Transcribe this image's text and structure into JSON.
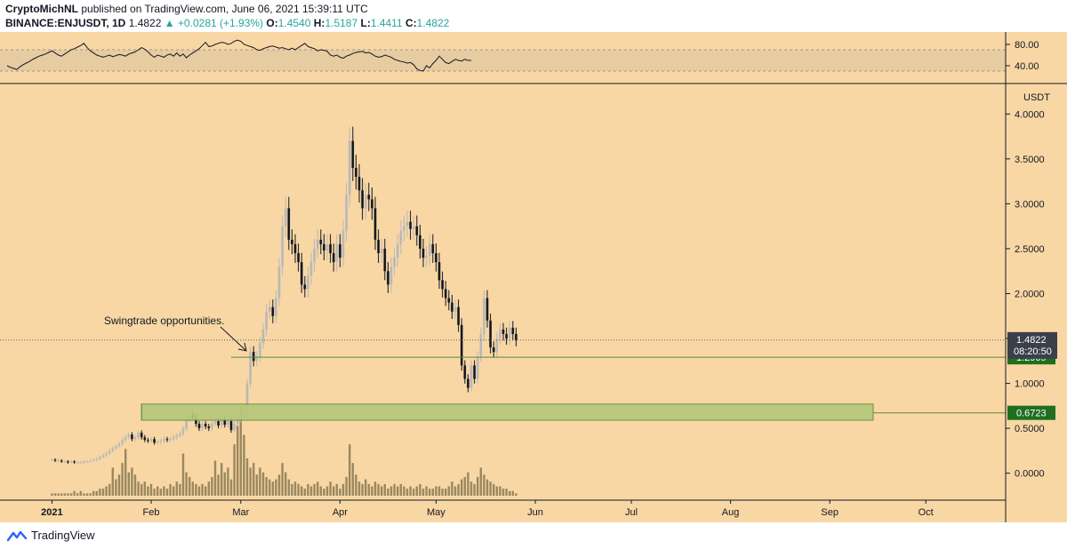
{
  "header": {
    "author": "CryptoMichNL",
    "published": "published on TradingView.com, June 06, 2021 15:39:11 UTC",
    "symbol": "BINANCE:ENJUSDT, 1D",
    "last": "1.4822",
    "change": "▲ +0.0281 (+1.93%)",
    "o_label": "O:",
    "o": "1.4540",
    "h_label": "H:",
    "h": "1.5187",
    "l_label": "L:",
    "l": "1.4411",
    "c_label": "C:",
    "c": "1.4822"
  },
  "footer": {
    "brand": "TradingView",
    "logo_icon": "tradingview-logo-icon"
  },
  "colors": {
    "background": "#f8d7a4",
    "up_candle": "#b8b8b8",
    "down_candle": "#131722",
    "volume": "#8a7a55",
    "support_line": "#5a8a3a",
    "zone_fill": "#b6c77a",
    "last_price_box": "#3a3f4a",
    "support_box": "#1f6f1f",
    "axis_text": "#131722"
  },
  "chart_data": {
    "type": "candlestick",
    "currency_label": "USDT",
    "y_ticks": [
      "4.0000",
      "3.5000",
      "3.0000",
      "2.5000",
      "2.0000",
      "1.5000",
      "1.0000",
      "0.5000",
      "0.0000"
    ],
    "ylim": [
      -0.3,
      4.3
    ],
    "x_ticks": [
      "2021",
      "Feb",
      "Mar",
      "Apr",
      "May",
      "Jun",
      "Jul",
      "Aug",
      "Sep",
      "Oct"
    ],
    "last_price": {
      "label": "1.4822",
      "countdown": "08:20:50",
      "value": 1.4822
    },
    "levels": [
      {
        "label": "1.2909",
        "value": 1.2909,
        "type": "line"
      },
      {
        "label": "0.6723",
        "value": 0.6723,
        "type": "zone",
        "top": 0.77,
        "bottom": 0.59
      }
    ],
    "annotation": "Swingtrade opportunities.",
    "rsi": {
      "ticks": [
        "80.00",
        "40.00"
      ],
      "band": [
        30,
        70
      ],
      "ylim": [
        10,
        100
      ]
    },
    "closes": [
      0.15,
      0.14,
      0.14,
      0.13,
      0.13,
      0.12,
      0.13,
      0.12,
      0.12,
      0.12,
      0.13,
      0.13,
      0.14,
      0.15,
      0.16,
      0.18,
      0.2,
      0.22,
      0.25,
      0.28,
      0.3,
      0.33,
      0.37,
      0.4,
      0.43,
      0.38,
      0.4,
      0.45,
      0.4,
      0.37,
      0.36,
      0.38,
      0.34,
      0.35,
      0.36,
      0.38,
      0.37,
      0.38,
      0.4,
      0.42,
      0.44,
      0.5,
      0.6,
      0.65,
      0.62,
      0.55,
      0.5,
      0.55,
      0.52,
      0.5,
      0.55,
      0.58,
      0.53,
      0.6,
      0.54,
      0.58,
      0.48,
      0.55,
      0.6,
      0.65,
      0.72,
      1.0,
      1.35,
      1.25,
      1.3,
      1.45,
      1.6,
      1.8,
      1.85,
      1.75,
      1.95,
      2.3,
      2.75,
      2.95,
      2.6,
      2.55,
      2.45,
      2.35,
      2.1,
      2.05,
      2.2,
      2.35,
      2.5,
      2.6,
      2.55,
      2.48,
      2.55,
      2.45,
      2.35,
      2.55,
      2.4,
      2.7,
      3.1,
      3.7,
      3.4,
      3.3,
      3.15,
      2.95,
      3.1,
      3.05,
      2.95,
      2.6,
      2.45,
      2.5,
      2.25,
      2.1,
      2.3,
      2.4,
      2.55,
      2.7,
      2.75,
      2.8,
      2.72,
      2.75,
      2.65,
      2.5,
      2.4,
      2.42,
      2.55,
      2.45,
      2.35,
      2.15,
      2.05,
      1.95,
      1.9,
      1.8,
      1.85,
      1.65,
      1.2,
      1.05,
      0.95,
      1.2,
      1.05,
      1.3,
      1.55,
      1.95,
      1.7,
      1.4,
      1.35,
      1.5,
      1.6,
      1.55,
      1.5,
      1.62,
      1.55,
      1.4822
    ],
    "volumes": [
      1,
      1,
      1,
      1,
      1,
      1,
      1,
      2,
      1,
      2,
      1,
      1,
      1,
      2,
      2,
      3,
      3,
      4,
      5,
      12,
      7,
      9,
      14,
      20,
      10,
      12,
      9,
      6,
      5,
      6,
      4,
      5,
      3,
      4,
      3,
      4,
      3,
      5,
      4,
      6,
      5,
      18,
      10,
      8,
      6,
      5,
      4,
      5,
      4,
      6,
      8,
      15,
      9,
      14,
      10,
      12,
      7,
      22,
      30,
      38,
      26,
      16,
      12,
      14,
      9,
      12,
      10,
      8,
      7,
      6,
      7,
      9,
      14,
      10,
      7,
      5,
      6,
      5,
      4,
      3,
      5,
      4,
      5,
      6,
      4,
      3,
      4,
      6,
      4,
      5,
      3,
      5,
      8,
      22,
      14,
      9,
      6,
      5,
      7,
      5,
      4,
      6,
      5,
      4,
      5,
      3,
      4,
      5,
      4,
      5,
      4,
      3,
      4,
      3,
      4,
      5,
      3,
      4,
      3,
      3,
      4,
      4,
      3,
      3,
      4,
      6,
      4,
      5,
      7,
      8,
      10,
      6,
      5,
      8,
      12,
      9,
      7,
      6,
      5,
      4,
      4,
      3,
      3,
      2,
      2,
      1
    ],
    "rsi_values": [
      40,
      37,
      35,
      33,
      38,
      42,
      45,
      48,
      52,
      55,
      58,
      60,
      62,
      65,
      68,
      64,
      60,
      58,
      62,
      66,
      70,
      72,
      75,
      78,
      82,
      74,
      68,
      64,
      60,
      58,
      56,
      58,
      60,
      57,
      59,
      61,
      60,
      58,
      62,
      64,
      66,
      70,
      74,
      71,
      66,
      60,
      56,
      60,
      58,
      56,
      60,
      62,
      58,
      64,
      58,
      62,
      55,
      60,
      64,
      68,
      72,
      78,
      84,
      76,
      77,
      80,
      82,
      84,
      83,
      80,
      82,
      86,
      88,
      86,
      80,
      78,
      76,
      74,
      70,
      69,
      72,
      74,
      76,
      77,
      75,
      73,
      74,
      72,
      70,
      73,
      70,
      74,
      78,
      82,
      76,
      74,
      72,
      68,
      70,
      69,
      67,
      60,
      58,
      60,
      56,
      54,
      58,
      60,
      63,
      65,
      66,
      67,
      64,
      65,
      62,
      58,
      56,
      57,
      60,
      58,
      56,
      52,
      50,
      48,
      47,
      45,
      46,
      42,
      34,
      31,
      30,
      40,
      36,
      44,
      50,
      58,
      52,
      46,
      44,
      48,
      52,
      50,
      49,
      52,
      50,
      50
    ]
  }
}
